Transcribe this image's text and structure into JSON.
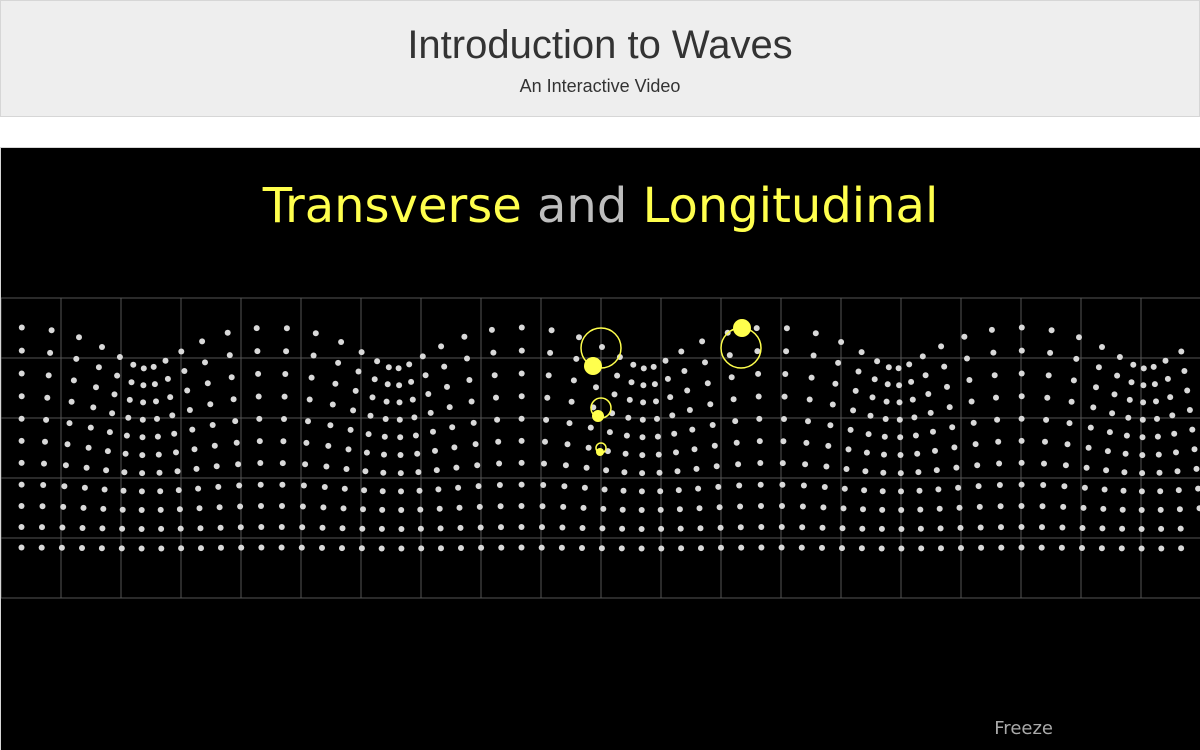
{
  "header": {
    "title": "Introduction to Waves",
    "subtitle": "An Interactive Video"
  },
  "slide": {
    "title_part1": "Transverse",
    "title_part2": "and",
    "title_part3": "Longitudinal"
  },
  "controls": {
    "freeze_label": "Freeze"
  },
  "colors": {
    "background": "#000000",
    "particle": "#d9d9d9",
    "highlight": "#ffff4d",
    "grid": "#555555"
  }
}
